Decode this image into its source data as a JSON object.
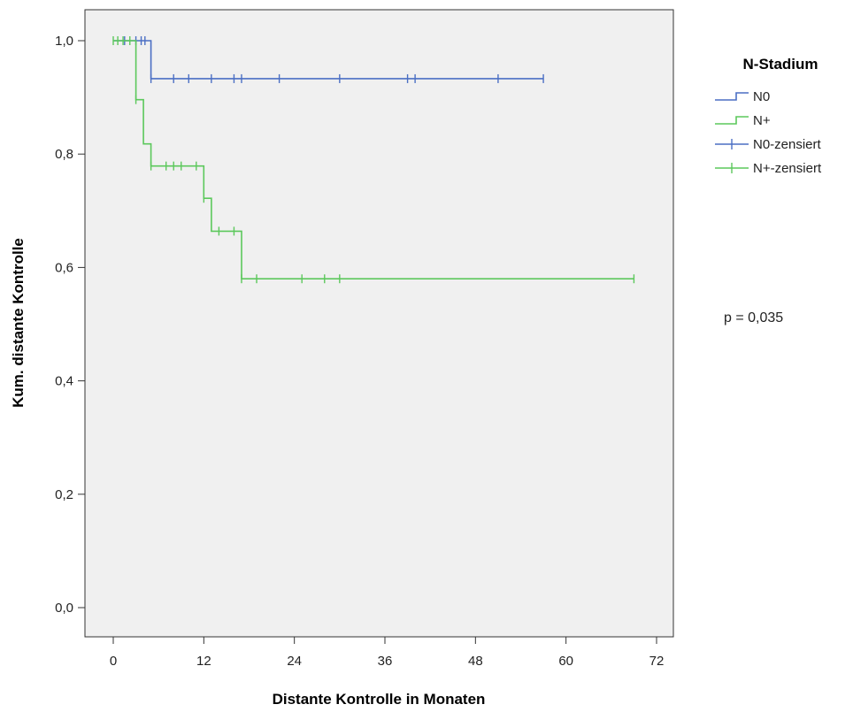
{
  "chart_data": {
    "type": "line",
    "subtype": "kaplan-meier-step",
    "xlabel": "Distante Kontrolle in Monaten",
    "ylabel": "Kum. distante Kontrolle",
    "xlim": [
      0,
      72
    ],
    "ylim": [
      0,
      1
    ],
    "x_ticks": [
      0,
      12,
      24,
      36,
      48,
      60,
      72
    ],
    "x_tick_labels": [
      "0",
      "12",
      "24",
      "36",
      "48",
      "60",
      "72"
    ],
    "y_ticks": [
      0,
      0.2,
      0.4,
      0.6,
      0.8,
      1.0
    ],
    "y_tick_labels": [
      "0,0",
      "0,2",
      "0,4",
      "0,6",
      "0,8",
      "1,0"
    ],
    "grid": false,
    "plot_background": "#f0f0f0",
    "legend": {
      "title": "N-Stadium",
      "position": "right",
      "entries": [
        {
          "label": "N0",
          "kind": "step",
          "color": "#4b6fc4"
        },
        {
          "label": "N+",
          "kind": "step",
          "color": "#5cc85c"
        },
        {
          "label": "N0-zensiert",
          "kind": "censor",
          "color": "#4b6fc4"
        },
        {
          "label": "N+-zensiert",
          "kind": "censor",
          "color": "#5cc85c"
        }
      ]
    },
    "annotation": "p = 0,035",
    "series": [
      {
        "name": "N0",
        "color": "#4b6fc4",
        "steps": [
          [
            0,
            1.0
          ],
          [
            5,
            1.0
          ],
          [
            5,
            0.933
          ],
          [
            57,
            0.933
          ]
        ],
        "censored": [
          [
            1.5,
            1.0
          ],
          [
            3,
            1.0
          ],
          [
            3.7,
            1.0
          ],
          [
            4.2,
            1.0
          ],
          [
            5,
            0.933
          ],
          [
            8,
            0.933
          ],
          [
            10,
            0.933
          ],
          [
            13,
            0.933
          ],
          [
            16,
            0.933
          ],
          [
            17,
            0.933
          ],
          [
            22,
            0.933
          ],
          [
            30,
            0.933
          ],
          [
            39,
            0.933
          ],
          [
            40,
            0.933
          ],
          [
            51,
            0.933
          ],
          [
            57,
            0.933
          ]
        ]
      },
      {
        "name": "N+",
        "color": "#5cc85c",
        "steps": [
          [
            0,
            1.0
          ],
          [
            3,
            1.0
          ],
          [
            3,
            0.896
          ],
          [
            4,
            0.896
          ],
          [
            4,
            0.818
          ],
          [
            5,
            0.818
          ],
          [
            5,
            0.779
          ],
          [
            12,
            0.779
          ],
          [
            12,
            0.722
          ],
          [
            13,
            0.722
          ],
          [
            13,
            0.664
          ],
          [
            17,
            0.664
          ],
          [
            17,
            0.58
          ],
          [
            69,
            0.58
          ]
        ],
        "censored": [
          [
            0,
            1.0
          ],
          [
            0.6,
            1.0
          ],
          [
            1.3,
            1.0
          ],
          [
            2.2,
            1.0
          ],
          [
            3,
            0.896
          ],
          [
            5,
            0.779
          ],
          [
            7,
            0.779
          ],
          [
            8,
            0.779
          ],
          [
            9,
            0.779
          ],
          [
            11,
            0.779
          ],
          [
            12,
            0.722
          ],
          [
            14,
            0.664
          ],
          [
            16,
            0.664
          ],
          [
            17,
            0.58
          ],
          [
            19,
            0.58
          ],
          [
            25,
            0.58
          ],
          [
            28,
            0.58
          ],
          [
            30,
            0.58
          ],
          [
            69,
            0.58
          ]
        ]
      }
    ]
  }
}
